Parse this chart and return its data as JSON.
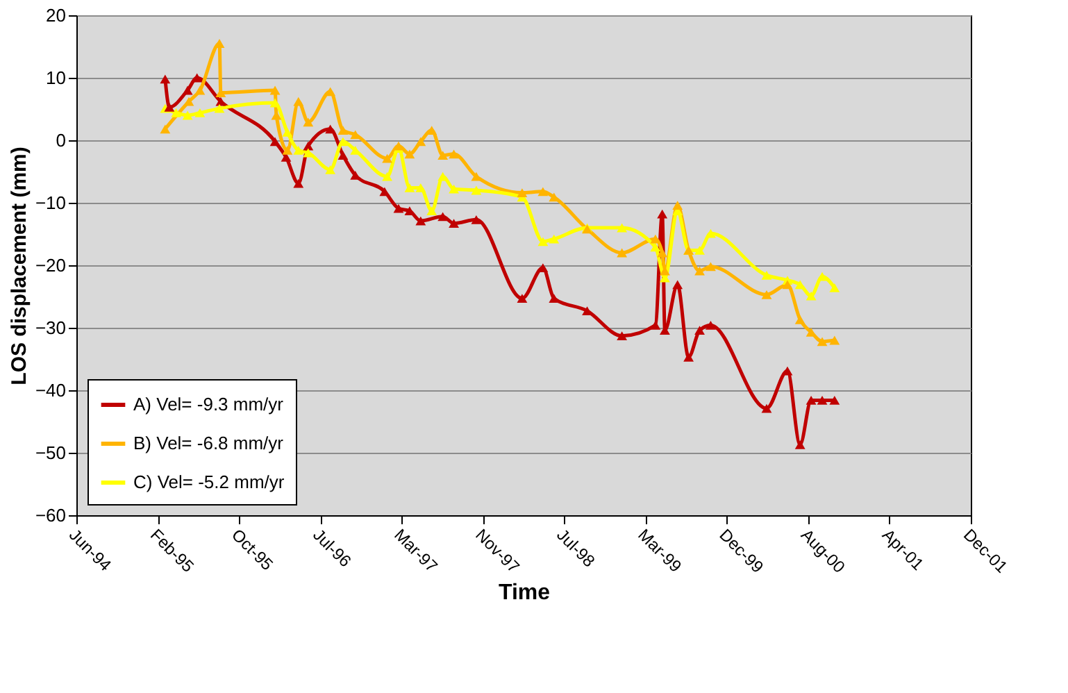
{
  "chart_data": {
    "type": "line",
    "xlabel": "Time",
    "ylabel": "LOS displacement (mm)",
    "xlim": [
      "1994-06-15",
      "2001-12-26"
    ],
    "xticks": [
      {
        "value": "1994-06-15",
        "label": "Jun-94"
      },
      {
        "value": "1995-02-20",
        "label": "Feb-95"
      },
      {
        "value": "1995-10-28",
        "label": "Oct-95"
      },
      {
        "value": "1996-07-04",
        "label": "Jul-96"
      },
      {
        "value": "1997-03-11",
        "label": "Mar-97"
      },
      {
        "value": "1997-11-16",
        "label": "Nov-97"
      },
      {
        "value": "1998-07-24",
        "label": "Jul-98"
      },
      {
        "value": "1999-03-31",
        "label": "Mar-99"
      },
      {
        "value": "1999-12-06",
        "label": "Dec-99"
      },
      {
        "value": "2000-08-13",
        "label": "Aug-00"
      },
      {
        "value": "2001-04-20",
        "label": "Apr-01"
      },
      {
        "value": "2001-12-26",
        "label": "Dec-01"
      }
    ],
    "ylim": [
      -60,
      20
    ],
    "yticks": [
      -60,
      -50,
      -40,
      -30,
      -20,
      -10,
      0,
      10,
      20
    ],
    "grid": "y",
    "legend": "bottom left",
    "marker": "triangle",
    "line_style": "solid",
    "series": [
      {
        "name": "A) Vel= -9.3 mm/yr",
        "color": "#c00000",
        "x": [
          "1995-03-15",
          "1995-03-28",
          "1995-05-23",
          "1995-06-21",
          "1995-09-02",
          "1996-02-16",
          "1996-03-21",
          "1996-04-28",
          "1996-05-28",
          "1996-08-04",
          "1996-09-12",
          "1996-10-20",
          "1997-01-18",
          "1997-03-02",
          "1997-04-05",
          "1997-05-09",
          "1997-07-16",
          "1997-08-19",
          "1997-10-27",
          "1998-03-17",
          "1998-05-20",
          "1998-06-23",
          "1998-10-03",
          "1999-01-18",
          "1999-05-01",
          "1999-05-22",
          "1999-05-30",
          "1999-07-08",
          "1999-08-11",
          "1999-09-14",
          "1999-10-18",
          "2000-04-07",
          "2000-06-10",
          "2000-07-19",
          "2000-08-22",
          "2000-09-25",
          "2000-11-02"
        ],
        "values": [
          9.8,
          5.3,
          8,
          10,
          6.2,
          -0.2,
          -2.7,
          -6.9,
          -0.9,
          1.8,
          -2.4,
          -5.6,
          -8.2,
          -10.9,
          -11.3,
          -12.9,
          -12.2,
          -13.3,
          -12.7,
          -25.3,
          -20.4,
          -25.3,
          -27.3,
          -31.3,
          -29.6,
          -11.8,
          -30.4,
          -23.1,
          -34.7,
          -30.4,
          -29.6,
          -42.9,
          -36.9,
          -48.7,
          -41.6,
          -41.6,
          -41.6
        ]
      },
      {
        "name": "B) Vel= -6.8 mm/yr",
        "color": "#ffb400",
        "x": [
          "1995-03-15",
          "1995-05-27",
          "1995-06-30",
          "1995-08-29",
          "1995-09-02",
          "1996-02-16",
          "1996-02-20",
          "1996-03-25",
          "1996-04-28",
          "1996-05-28",
          "1996-08-04",
          "1996-09-12",
          "1996-10-20",
          "1997-01-26",
          "1997-03-02",
          "1997-04-05",
          "1997-05-09",
          "1997-06-12",
          "1997-07-16",
          "1997-08-19",
          "1997-10-27",
          "1998-03-17",
          "1998-05-20",
          "1998-06-23",
          "1998-10-03",
          "1999-01-18",
          "1999-05-01",
          "1999-05-22",
          "1999-05-30",
          "1999-07-08",
          "1999-08-11",
          "1999-09-14",
          "1999-10-18",
          "2000-04-07",
          "2000-06-10",
          "2000-07-19",
          "2000-08-22",
          "2000-09-25",
          "2000-11-02"
        ],
        "values": [
          1.8,
          6.2,
          8,
          15.5,
          7.6,
          8,
          4,
          -1.6,
          6.2,
          2.9,
          7.8,
          1.6,
          0.9,
          -2.9,
          -0.9,
          -2.2,
          -0.2,
          1.6,
          -2.4,
          -2.2,
          -5.8,
          -8.4,
          -8.2,
          -9.1,
          -14.2,
          -18,
          -15.8,
          -18,
          -20.9,
          -10.4,
          -17.6,
          -20.9,
          -20.2,
          -24.7,
          -23.1,
          -28.7,
          -30.7,
          -32.2,
          -32
        ]
      },
      {
        "name": "C) Vel= -5.2 mm/yr",
        "color": "#ffff00",
        "x": [
          "1995-03-15",
          "1995-04-18",
          "1995-05-23",
          "1995-06-30",
          "1995-08-29",
          "1996-02-16",
          "1996-03-25",
          "1996-04-28",
          "1996-05-28",
          "1996-08-04",
          "1996-09-12",
          "1996-10-20",
          "1997-01-26",
          "1997-03-02",
          "1997-04-05",
          "1997-05-09",
          "1997-06-12",
          "1997-07-16",
          "1997-08-19",
          "1997-10-27",
          "1998-03-17",
          "1998-05-20",
          "1998-06-23",
          "1998-10-03",
          "1999-01-18",
          "1999-05-01",
          "1999-05-30",
          "1999-07-08",
          "1999-08-11",
          "1999-09-14",
          "1999-10-18",
          "2000-04-07",
          "2000-06-10",
          "2000-07-19",
          "2000-08-22",
          "2000-09-25",
          "2000-11-02"
        ],
        "values": [
          5.1,
          4.4,
          4,
          4.4,
          5.1,
          6,
          1.3,
          -1.6,
          -2,
          -4.7,
          -0.2,
          -1.6,
          -5.8,
          -1.3,
          -7.6,
          -7.6,
          -11.3,
          -5.8,
          -7.8,
          -8,
          -9.1,
          -16.2,
          -15.8,
          -14,
          -14,
          -17.1,
          -22,
          -11.3,
          -17.6,
          -17.6,
          -14.9,
          -21.6,
          -22.4,
          -23.1,
          -24.9,
          -21.8,
          -23.6
        ]
      }
    ]
  }
}
